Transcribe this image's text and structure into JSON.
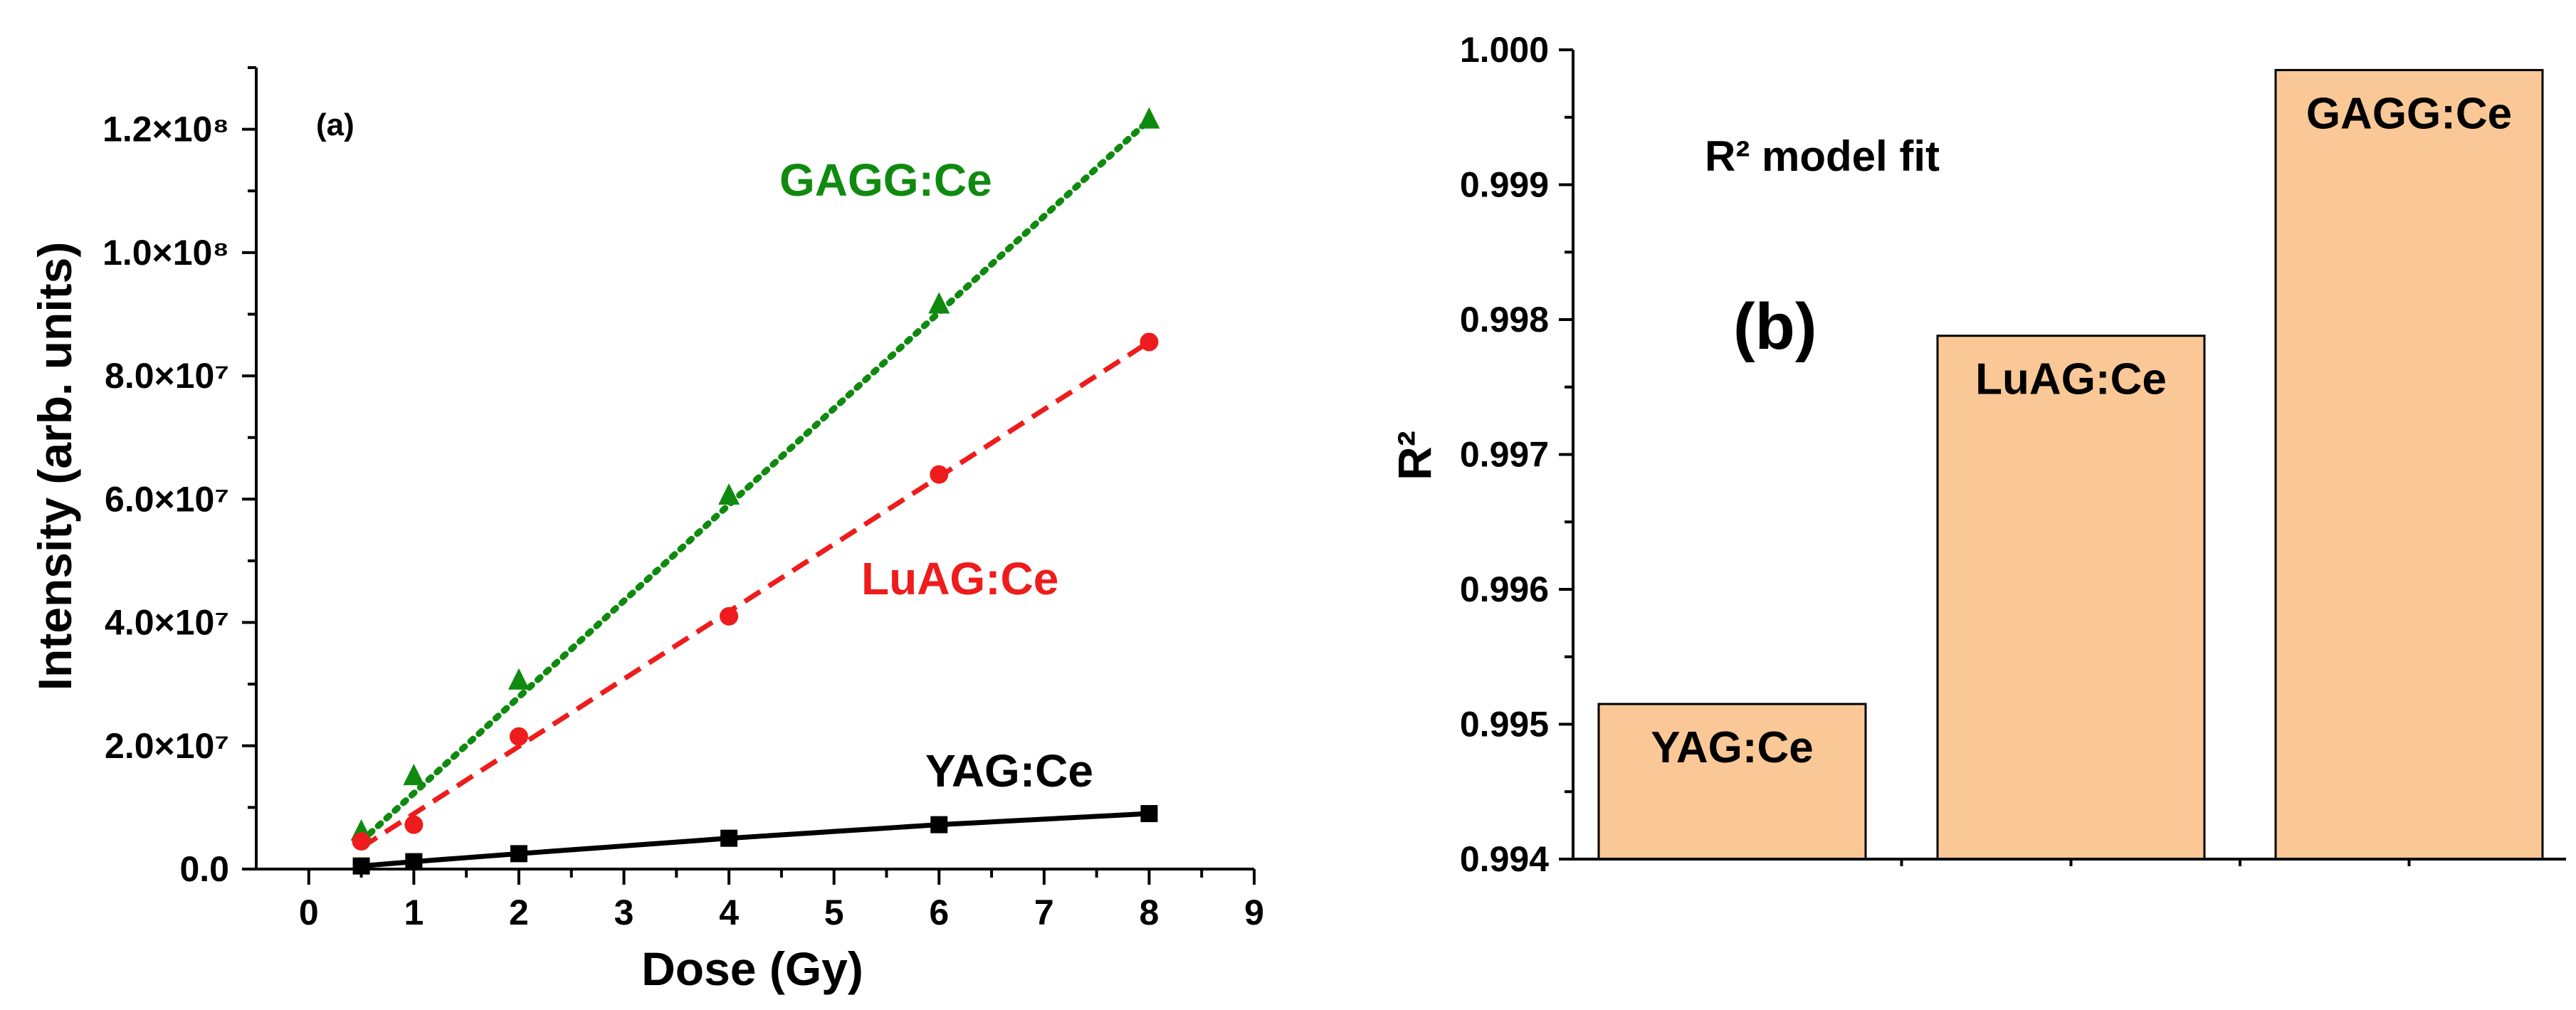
{
  "chart_data": [
    {
      "type": "line",
      "panel_label": "(a)",
      "xlabel": "Dose (Gy)",
      "ylabel": "Intensity (arb. units)",
      "xlim": [
        -0.5,
        9
      ],
      "ylim": [
        0,
        130000000
      ],
      "x_ticks": [
        0,
        1,
        2,
        3,
        4,
        5,
        6,
        7,
        8,
        9
      ],
      "x_tick_labels": [
        "0",
        "1",
        "2",
        "3",
        "4",
        "5",
        "6",
        "7",
        "8",
        "9"
      ],
      "y_ticks": [
        0,
        20000000,
        40000000,
        60000000,
        80000000,
        100000000,
        120000000
      ],
      "y_tick_labels": [
        "0.0",
        "2.0×10⁷",
        "4.0×10⁷",
        "6.0×10⁷",
        "8.0×10⁷",
        "1.0×10⁸",
        "1.2×10⁸"
      ],
      "series": [
        {
          "name": "GAGG:Ce",
          "color": "#0f8a0f",
          "marker": "triangle",
          "line_style": "dotted",
          "x": [
            0.5,
            1,
            2,
            4,
            6,
            8
          ],
          "values": [
            6000000,
            15000000,
            30500000,
            60500000,
            91500000,
            121500000
          ],
          "fit": [
            [
              0.5,
              4500000
            ],
            [
              8,
              121500000
            ]
          ]
        },
        {
          "name": "LuAG:Ce",
          "color": "#ee1c1c",
          "marker": "circle",
          "line_style": "dashed",
          "x": [
            0.5,
            1,
            2,
            4,
            6,
            8
          ],
          "values": [
            4500000,
            7200000,
            21500000,
            41000000,
            64000000,
            85500000
          ],
          "fit": [
            [
              0.5,
              3500000
            ],
            [
              8,
              85500000
            ]
          ]
        },
        {
          "name": "YAG:Ce",
          "color": "#000000",
          "marker": "square",
          "line_style": "solid",
          "x": [
            0.5,
            1,
            2,
            4,
            6,
            8
          ],
          "values": [
            500000,
            1200000,
            2500000,
            5000000,
            7200000,
            9000000
          ],
          "fit_curve": true
        }
      ]
    },
    {
      "type": "bar",
      "panel_label": "(b)",
      "annotation": "R² model fit",
      "ylabel": "R²",
      "ylim": [
        0.994,
        1.0
      ],
      "y_ticks": [
        0.994,
        0.995,
        0.996,
        0.997,
        0.998,
        0.999,
        1.0
      ],
      "y_tick_labels": [
        "0.994",
        "0.995",
        "0.996",
        "0.997",
        "0.998",
        "0.999",
        "1.000"
      ],
      "categories": [
        "YAG:Ce",
        "LuAG:Ce",
        "GAGG:Ce"
      ],
      "values": [
        0.99515,
        0.99788,
        0.99985
      ],
      "bar_color": "#fac896"
    }
  ]
}
